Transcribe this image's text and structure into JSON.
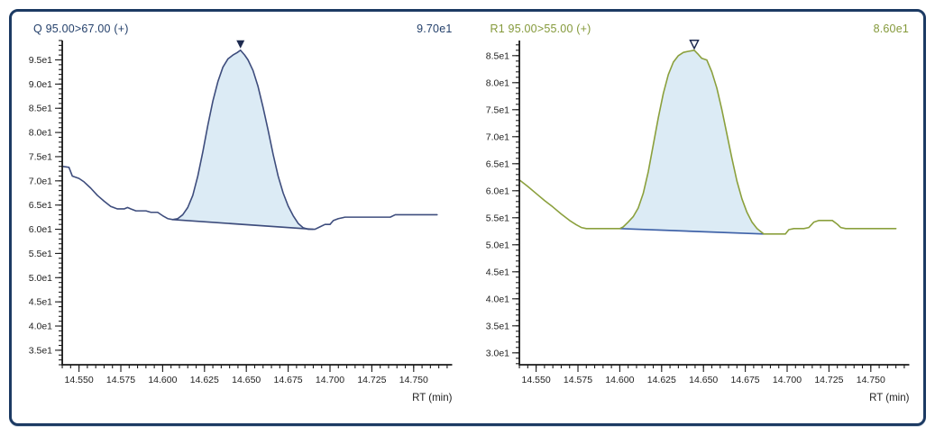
{
  "window": {
    "border_color": "#1c3a63",
    "background": "#ffffff"
  },
  "chart_data": [
    {
      "type": "area-line",
      "title": "Q 95.00>67.00 (+)",
      "max_label": "9.70e1",
      "xlabel": "RT (min)",
      "title_color": "#24406b",
      "line_color": "#3e4d7d",
      "baseline_color": "#3e4d7d",
      "fill_color": "#dcebf5",
      "marker": "triangle-down-filled",
      "marker_color": "#1d2a4f",
      "axis_color": "#1a1a1a",
      "tick_label_color": "#222222",
      "xlim": [
        14.54,
        14.773
      ],
      "ylim": [
        3.2,
        9.9
      ],
      "x_major_ticks": [
        14.55,
        14.575,
        14.6,
        14.625,
        14.65,
        14.675,
        14.7,
        14.725,
        14.75
      ],
      "x_tick_labels": [
        "14.550",
        "14.575",
        "14.600",
        "14.625",
        "14.650",
        "14.675",
        "14.700",
        "14.725",
        "14.750"
      ],
      "x_minor_step": 0.005,
      "y_major_ticks": [
        3.5,
        4.0,
        4.5,
        5.0,
        5.5,
        6.0,
        6.5,
        7.0,
        7.5,
        8.0,
        8.5,
        9.0,
        9.5
      ],
      "y_tick_labels": [
        "3.5e1",
        "4.0e1",
        "4.5e1",
        "5.0e1",
        "5.5e1",
        "6.0e1",
        "6.5e1",
        "7.0e1",
        "7.5e1",
        "8.0e1",
        "8.5e1",
        "9.0e1",
        "9.5e1"
      ],
      "y_minor_step": 0.1,
      "peak": {
        "apex_x": 14.6465,
        "apex_y": 9.7,
        "baseline": [
          [
            14.606,
            6.2
          ],
          [
            14.69,
            6.0
          ]
        ]
      },
      "points": [
        [
          14.54,
          7.3
        ],
        [
          14.544,
          7.28
        ],
        [
          14.546,
          7.1
        ],
        [
          14.55,
          7.05
        ],
        [
          14.553,
          6.98
        ],
        [
          14.557,
          6.85
        ],
        [
          14.561,
          6.7
        ],
        [
          14.565,
          6.58
        ],
        [
          14.569,
          6.47
        ],
        [
          14.573,
          6.42
        ],
        [
          14.577,
          6.42
        ],
        [
          14.579,
          6.45
        ],
        [
          14.581,
          6.42
        ],
        [
          14.584,
          6.38
        ],
        [
          14.59,
          6.38
        ],
        [
          14.593,
          6.35
        ],
        [
          14.597,
          6.35
        ],
        [
          14.6,
          6.28
        ],
        [
          14.603,
          6.22
        ],
        [
          14.606,
          6.2
        ],
        [
          14.609,
          6.22
        ],
        [
          14.612,
          6.3
        ],
        [
          14.615,
          6.45
        ],
        [
          14.618,
          6.7
        ],
        [
          14.621,
          7.1
        ],
        [
          14.624,
          7.6
        ],
        [
          14.627,
          8.15
        ],
        [
          14.63,
          8.65
        ],
        [
          14.633,
          9.05
        ],
        [
          14.636,
          9.35
        ],
        [
          14.639,
          9.52
        ],
        [
          14.642,
          9.6
        ],
        [
          14.6445,
          9.65
        ],
        [
          14.6465,
          9.7
        ],
        [
          14.649,
          9.6
        ],
        [
          14.651,
          9.5
        ],
        [
          14.654,
          9.28
        ],
        [
          14.657,
          8.95
        ],
        [
          14.66,
          8.52
        ],
        [
          14.663,
          8.05
        ],
        [
          14.666,
          7.55
        ],
        [
          14.669,
          7.1
        ],
        [
          14.672,
          6.75
        ],
        [
          14.675,
          6.48
        ],
        [
          14.678,
          6.28
        ],
        [
          14.681,
          6.12
        ],
        [
          14.684,
          6.03
        ],
        [
          14.687,
          6.0
        ],
        [
          14.691,
          6.0
        ],
        [
          14.694,
          6.05
        ],
        [
          14.697,
          6.1
        ],
        [
          14.7,
          6.1
        ],
        [
          14.702,
          6.18
        ],
        [
          14.705,
          6.22
        ],
        [
          14.709,
          6.25
        ],
        [
          14.72,
          6.25
        ],
        [
          14.736,
          6.25
        ],
        [
          14.739,
          6.3
        ],
        [
          14.742,
          6.3
        ],
        [
          14.764,
          6.3
        ]
      ]
    },
    {
      "type": "area-line",
      "title": "R1 95.00>55.00 (+)",
      "max_label": "8.60e1",
      "xlabel": "RT (min)",
      "title_color": "#84993a",
      "line_color": "#8ba03d",
      "baseline_color": "#3f62a8",
      "fill_color": "#dcebf5",
      "marker": "triangle-down-hollow",
      "marker_color": "#1d2a4f",
      "axis_color": "#1a1a1a",
      "tick_label_color": "#222222",
      "xlim": [
        14.54,
        14.773
      ],
      "ylim": [
        2.78,
        8.78
      ],
      "x_major_ticks": [
        14.55,
        14.575,
        14.6,
        14.625,
        14.65,
        14.675,
        14.7,
        14.725,
        14.75
      ],
      "x_tick_labels": [
        "14.550",
        "14.575",
        "14.600",
        "14.625",
        "14.650",
        "14.675",
        "14.700",
        "14.725",
        "14.750"
      ],
      "x_minor_step": 0.005,
      "y_major_ticks": [
        3.0,
        3.5,
        4.0,
        4.5,
        5.0,
        5.5,
        6.0,
        6.5,
        7.0,
        7.5,
        8.0,
        8.5
      ],
      "y_tick_labels": [
        "3.0e1",
        "3.5e1",
        "4.0e1",
        "4.5e1",
        "5.0e1",
        "5.5e1",
        "6.0e1",
        "6.5e1",
        "7.0e1",
        "7.5e1",
        "8.0e1",
        "8.5e1"
      ],
      "y_minor_step": 0.1,
      "peak": {
        "apex_x": 14.6445,
        "apex_y": 8.6,
        "baseline": [
          [
            14.6,
            5.3
          ],
          [
            14.686,
            5.2
          ]
        ]
      },
      "points": [
        [
          14.54,
          6.2
        ],
        [
          14.545,
          6.08
        ],
        [
          14.55,
          5.95
        ],
        [
          14.555,
          5.82
        ],
        [
          14.56,
          5.7
        ],
        [
          14.565,
          5.57
        ],
        [
          14.57,
          5.45
        ],
        [
          14.574,
          5.37
        ],
        [
          14.577,
          5.32
        ],
        [
          14.58,
          5.3
        ],
        [
          14.585,
          5.3
        ],
        [
          14.59,
          5.3
        ],
        [
          14.595,
          5.3
        ],
        [
          14.6,
          5.3
        ],
        [
          14.602,
          5.33
        ],
        [
          14.605,
          5.42
        ],
        [
          14.608,
          5.52
        ],
        [
          14.611,
          5.68
        ],
        [
          14.614,
          5.95
        ],
        [
          14.617,
          6.35
        ],
        [
          14.62,
          6.85
        ],
        [
          14.623,
          7.35
        ],
        [
          14.626,
          7.8
        ],
        [
          14.629,
          8.15
        ],
        [
          14.632,
          8.38
        ],
        [
          14.635,
          8.5
        ],
        [
          14.638,
          8.56
        ],
        [
          14.641,
          8.58
        ],
        [
          14.6445,
          8.6
        ],
        [
          14.647,
          8.52
        ],
        [
          14.649,
          8.45
        ],
        [
          14.652,
          8.42
        ],
        [
          14.655,
          8.2
        ],
        [
          14.658,
          7.9
        ],
        [
          14.661,
          7.5
        ],
        [
          14.664,
          7.05
        ],
        [
          14.667,
          6.6
        ],
        [
          14.67,
          6.18
        ],
        [
          14.673,
          5.85
        ],
        [
          14.676,
          5.6
        ],
        [
          14.679,
          5.42
        ],
        [
          14.682,
          5.3
        ],
        [
          14.686,
          5.2
        ],
        [
          14.692,
          5.2
        ],
        [
          14.699,
          5.2
        ],
        [
          14.701,
          5.28
        ],
        [
          14.704,
          5.3
        ],
        [
          14.71,
          5.3
        ],
        [
          14.713,
          5.32
        ],
        [
          14.716,
          5.42
        ],
        [
          14.719,
          5.45
        ],
        [
          14.727,
          5.45
        ],
        [
          14.73,
          5.38
        ],
        [
          14.732,
          5.32
        ],
        [
          14.735,
          5.3
        ],
        [
          14.74,
          5.3
        ],
        [
          14.765,
          5.3
        ]
      ]
    }
  ]
}
